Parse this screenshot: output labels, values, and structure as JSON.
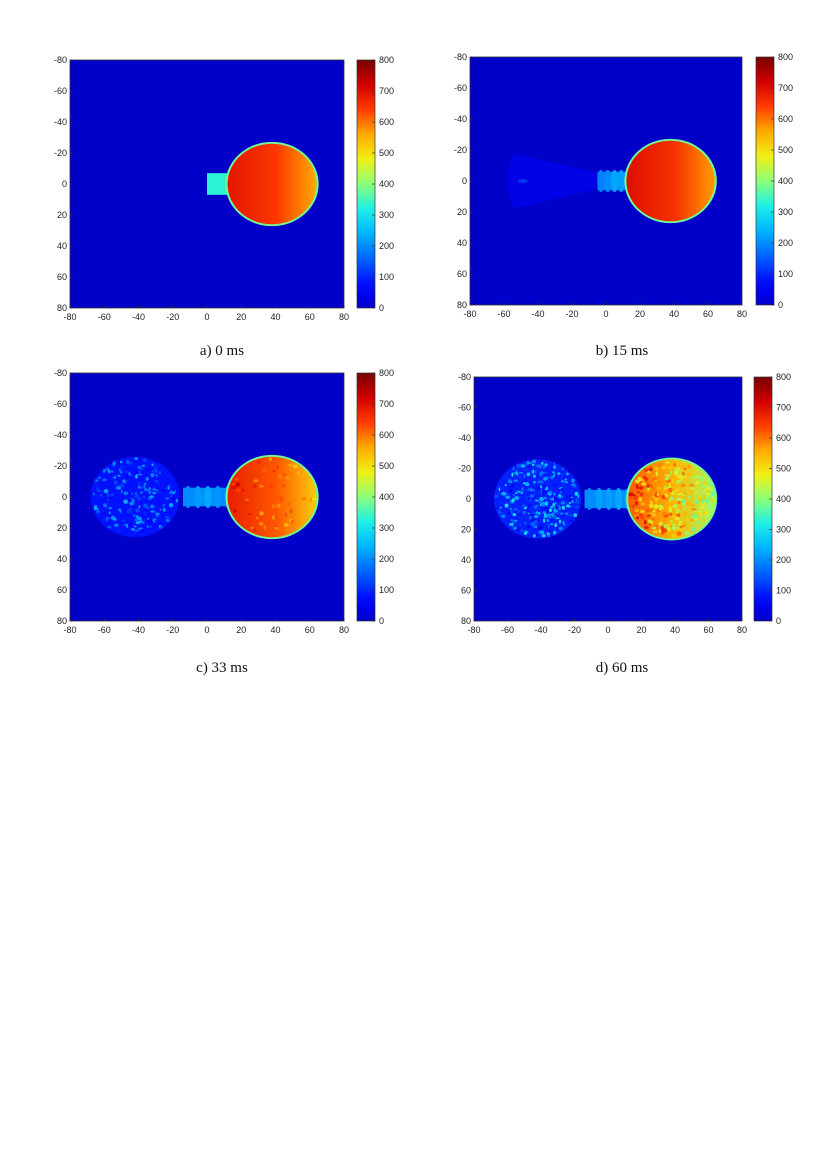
{
  "chart_data": [
    {
      "type": "heatmap",
      "caption": "a) 0 ms",
      "x_ticks": [
        "-80",
        "-60",
        "-40",
        "-20",
        "0",
        "20",
        "40",
        "60",
        "80"
      ],
      "y_ticks": [
        "-80",
        "-60",
        "-40",
        "-20",
        "0",
        "20",
        "40",
        "60",
        "80"
      ],
      "colorbar_ticks": [
        "800",
        "700",
        "600",
        "500",
        "400",
        "300",
        "200",
        "100",
        "0"
      ],
      "xlim": [
        -80,
        80
      ],
      "ylim": [
        -80,
        80
      ],
      "clim": [
        0,
        800
      ],
      "background_value": 0,
      "regions": [
        {
          "shape": "neck",
          "x_start": 0,
          "x_end": 15,
          "half_width": 7,
          "value": 330
        },
        {
          "shape": "sphere",
          "cx": 38,
          "cy": 0,
          "r": 26,
          "value_left": 690,
          "value_right": 560
        }
      ]
    },
    {
      "type": "heatmap",
      "caption": "b) 15 ms",
      "x_ticks": [
        "-80",
        "-60",
        "-40",
        "-20",
        "0",
        "20",
        "40",
        "60",
        "80"
      ],
      "y_ticks": [
        "-80",
        "-60",
        "-40",
        "-20",
        "0",
        "20",
        "40",
        "60",
        "80"
      ],
      "colorbar_ticks": [
        "800",
        "700",
        "600",
        "500",
        "400",
        "300",
        "200",
        "100",
        "0"
      ],
      "xlim": [
        -80,
        80
      ],
      "ylim": [
        -80,
        80
      ],
      "clim": [
        0,
        800
      ],
      "background_value": 0,
      "regions": [
        {
          "shape": "faint-cone",
          "x_start": -62,
          "x_end": -5,
          "value": 70
        },
        {
          "shape": "neck",
          "x_start": -5,
          "x_end": 15,
          "half_width": 6,
          "value": 190
        },
        {
          "shape": "sphere",
          "cx": 38,
          "cy": 0,
          "r": 26,
          "value_left": 700,
          "value_right": 570
        }
      ]
    },
    {
      "type": "heatmap",
      "caption": "c) 33 ms",
      "x_ticks": [
        "-80",
        "-60",
        "-40",
        "-20",
        "0",
        "20",
        "40",
        "60",
        "80"
      ],
      "y_ticks": [
        "-80",
        "-60",
        "-40",
        "-20",
        "0",
        "20",
        "40",
        "60",
        "80"
      ],
      "colorbar_ticks": [
        "800",
        "700",
        "600",
        "500",
        "400",
        "300",
        "200",
        "100",
        "0"
      ],
      "xlim": [
        -80,
        80
      ],
      "ylim": [
        -80,
        80
      ],
      "clim": [
        0,
        800
      ],
      "background_value": 0,
      "regions": [
        {
          "shape": "noisy-sphere",
          "cx": -42,
          "cy": 0,
          "r": 26,
          "value": 80
        },
        {
          "shape": "neck",
          "x_start": -14,
          "x_end": 15,
          "half_width": 6,
          "value": 200
        },
        {
          "shape": "sphere",
          "cx": 38,
          "cy": 0,
          "r": 26,
          "value_left": 680,
          "value_right": 520
        }
      ]
    },
    {
      "type": "heatmap",
      "caption": "d) 60 ms",
      "x_ticks": [
        "-80",
        "-60",
        "-40",
        "-20",
        "0",
        "20",
        "40",
        "60",
        "80"
      ],
      "y_ticks": [
        "-80",
        "-60",
        "-40",
        "-20",
        "0",
        "20",
        "40",
        "60",
        "80"
      ],
      "colorbar_ticks": [
        "800",
        "700",
        "600",
        "500",
        "400",
        "300",
        "200",
        "100",
        "0"
      ],
      "xlim": [
        -80,
        80
      ],
      "ylim": [
        -80,
        80
      ],
      "clim": [
        0,
        800
      ],
      "background_value": 0,
      "regions": [
        {
          "shape": "noisy-sphere",
          "cx": -42,
          "cy": 0,
          "r": 26,
          "value": 95
        },
        {
          "shape": "neck",
          "x_start": -14,
          "x_end": 15,
          "half_width": 6,
          "value": 200
        },
        {
          "shape": "sphere",
          "cx": 38,
          "cy": 0,
          "r": 26,
          "value_left": 620,
          "value_right": 420
        }
      ]
    }
  ]
}
